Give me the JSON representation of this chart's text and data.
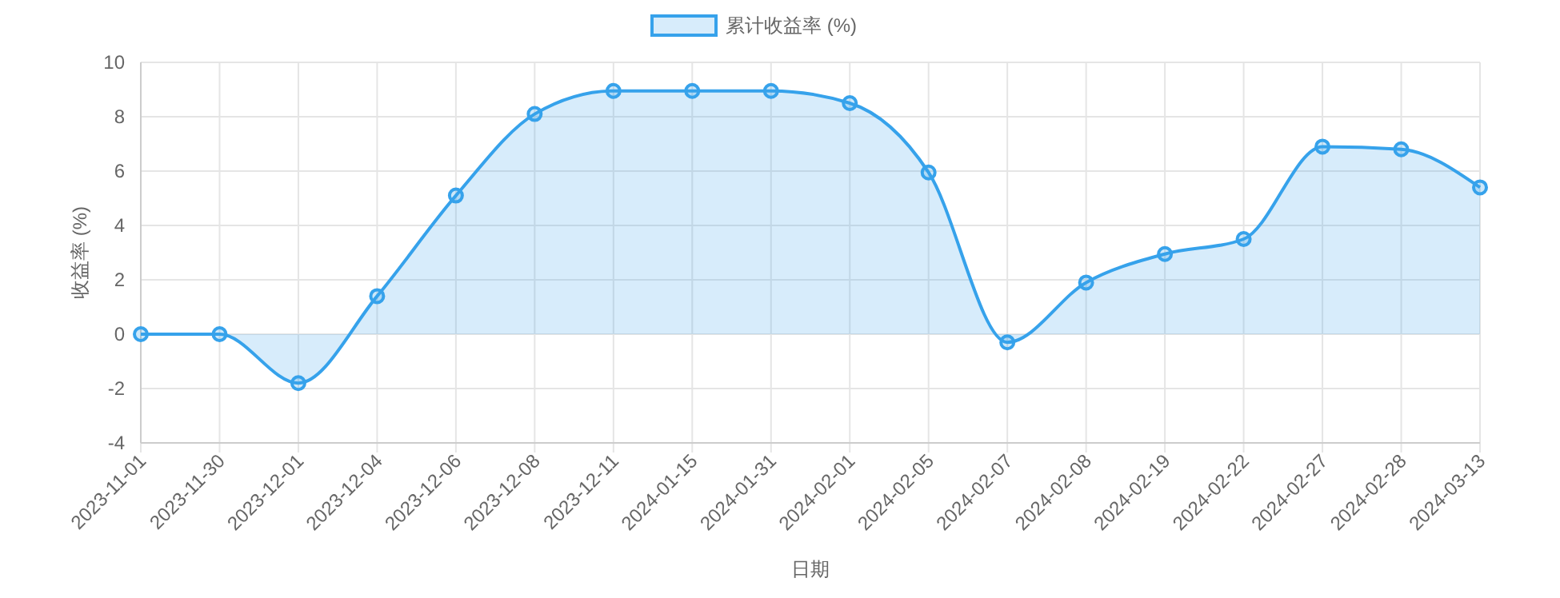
{
  "chart_data": {
    "type": "area",
    "xlabel": "日期",
    "ylabel": "收益率 (%)",
    "categories": [
      "2023-11-01",
      "2023-11-30",
      "2023-12-01",
      "2023-12-04",
      "2023-12-06",
      "2023-12-08",
      "2023-12-11",
      "2024-01-15",
      "2024-01-31",
      "2024-02-01",
      "2024-02-05",
      "2024-02-07",
      "2024-02-08",
      "2024-02-19",
      "2024-02-22",
      "2024-02-27",
      "2024-02-28",
      "2024-03-13"
    ],
    "series": [
      {
        "name": "累计收益率 (%)",
        "color": "#36a2eb",
        "values": [
          0,
          0,
          -1.8,
          1.4,
          5.1,
          8.1,
          8.95,
          8.95,
          8.95,
          8.5,
          5.95,
          -0.3,
          1.9,
          2.95,
          3.5,
          6.9,
          6.8,
          5.4
        ]
      }
    ],
    "ylim": [
      -4,
      10
    ],
    "yticks": [
      -4,
      -2,
      0,
      2,
      4,
      6,
      8,
      10
    ],
    "grid": true,
    "legend": "top",
    "marker": "circle",
    "line_style": "solid"
  }
}
